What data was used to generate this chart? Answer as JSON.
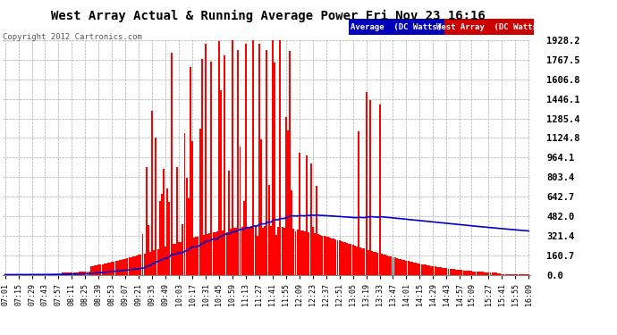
{
  "title": "West Array Actual & Running Average Power Fri Nov 23 16:16",
  "copyright": "Copyright 2012 Cartronics.com",
  "legend_avg": "Average  (DC Watts)",
  "legend_west": "West Array  (DC Watts)",
  "ymax": 1928.2,
  "ytick_values": [
    0.0,
    160.7,
    321.4,
    482.0,
    642.7,
    803.4,
    964.1,
    1124.8,
    1285.4,
    1446.1,
    1606.8,
    1767.5,
    1928.2
  ],
  "ytick_labels": [
    "0.0",
    "160.7",
    "321.4",
    "482.0",
    "642.7",
    "803.4",
    "964.1",
    "1124.8",
    "1285.4",
    "1446.1",
    "1606.8",
    "1767.5",
    "1928.2"
  ],
  "bg_color": "#ffffff",
  "plot_bg": "#ffffff",
  "bar_color": "#ff0000",
  "line_color": "#0000cc",
  "grid_color": "#aaaaaa",
  "title_color": "#000000",
  "tick_color": "#000000",
  "legend_avg_bg": "#0000aa",
  "legend_west_bg": "#cc0000",
  "x_labels": [
    "07:01",
    "07:15",
    "07:29",
    "07:43",
    "07:57",
    "08:11",
    "08:25",
    "08:39",
    "08:53",
    "09:07",
    "09:21",
    "09:35",
    "09:49",
    "10:03",
    "10:17",
    "10:31",
    "10:45",
    "10:59",
    "11:13",
    "11:27",
    "11:41",
    "11:55",
    "12:09",
    "12:23",
    "12:37",
    "12:51",
    "13:05",
    "13:19",
    "13:33",
    "13:47",
    "14:01",
    "14:15",
    "14:29",
    "14:43",
    "14:57",
    "15:09",
    "15:27",
    "15:41",
    "15:55",
    "16:09"
  ]
}
